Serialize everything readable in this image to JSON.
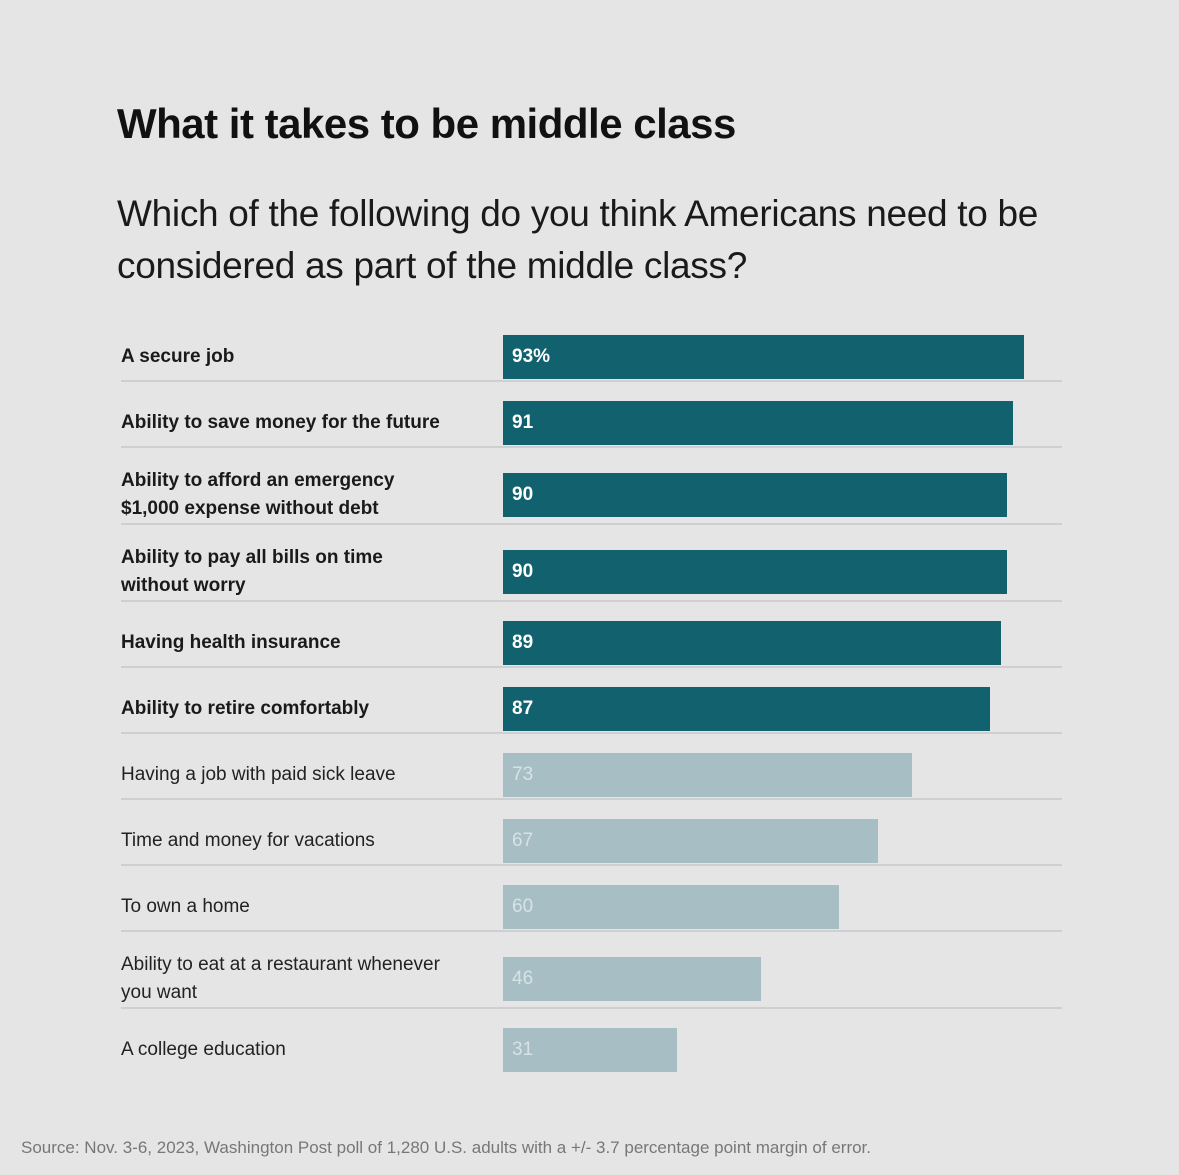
{
  "chart_data": {
    "type": "bar",
    "orientation": "horizontal",
    "title": "What it takes to be middle class",
    "subtitle": "Which of the following do you think Americans need to be considered as part of the middle class?",
    "xlabel": "",
    "ylabel": "",
    "xlim": [
      0,
      100
    ],
    "grid": false,
    "value_suffix_first": "%",
    "categories": [
      "A secure job",
      "Ability to save money for the future",
      "Ability to afford an emergency $1,000 expense without debt",
      "Ability to pay all bills on time without worry",
      "Having health insurance",
      "Ability to retire comfortably",
      "Having a job with paid sick leave",
      "Time and money for vacations",
      "To own a home",
      "Ability to eat at a restaurant whenever you want",
      "A college education"
    ],
    "label_lines": [
      [
        "A secure job"
      ],
      [
        "Ability to save money for the future"
      ],
      [
        "Ability to afford an emergency",
        "$1,000 expense without debt"
      ],
      [
        "Ability to pay all bills on time",
        "without worry"
      ],
      [
        "Having health insurance"
      ],
      [
        "Ability to retire comfortably"
      ],
      [
        "Having a job with paid sick leave"
      ],
      [
        "Time and money for vacations"
      ],
      [
        "To own a home"
      ],
      [
        "Ability to eat at a restaurant whenever",
        "you want"
      ],
      [
        "A college education"
      ]
    ],
    "value_labels": [
      "93%",
      "91",
      "90",
      "90",
      "89",
      "87",
      "73",
      "67",
      "60",
      "46",
      "31"
    ],
    "values": [
      93,
      91,
      90,
      90,
      89,
      87,
      73,
      67,
      60,
      46,
      31
    ],
    "highlighted": [
      true,
      true,
      true,
      true,
      true,
      true,
      false,
      false,
      false,
      false,
      false
    ],
    "colors": {
      "highlight_bar": "#11626e",
      "highlight_text": "#ffffff",
      "muted_bar": "#a7bec4",
      "muted_text": "#d6e3e6"
    }
  },
  "source": "Source: Nov. 3-6, 2023, Washington Post poll of 1,280 U.S. adults with a +/- 3.7 percentage point margin of error."
}
